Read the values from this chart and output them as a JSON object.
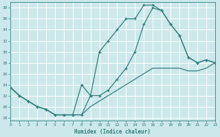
{
  "xlabel": "Humidex (Indice chaleur)",
  "xlim": [
    0,
    23
  ],
  "ylim": [
    17.5,
    39
  ],
  "yticks": [
    18,
    20,
    22,
    24,
    26,
    28,
    30,
    32,
    34,
    36,
    38
  ],
  "xticks": [
    0,
    1,
    2,
    3,
    4,
    5,
    6,
    7,
    8,
    9,
    10,
    11,
    12,
    13,
    14,
    15,
    16,
    17,
    18,
    19,
    20,
    21,
    22,
    23
  ],
  "bg_color": "#cce8ea",
  "grid_color": "#ffffff",
  "line_color": "#2e7d7d",
  "line1_x": [
    0,
    1,
    2,
    3,
    4,
    5,
    6,
    7,
    8,
    9,
    10,
    11,
    12,
    13,
    14,
    15,
    16,
    17,
    18,
    19,
    20,
    21,
    22,
    23
  ],
  "line1_y": [
    23.5,
    22,
    21,
    20,
    19.5,
    18.5,
    18.5,
    18.5,
    18.5,
    22,
    30,
    32,
    34,
    36,
    36,
    38.5,
    38.5,
    37.5,
    35,
    33,
    29,
    28,
    28.5,
    28
  ],
  "line2_x": [
    0,
    1,
    2,
    3,
    4,
    5,
    6,
    7,
    8,
    9,
    10,
    11,
    12,
    13,
    14,
    15,
    16,
    17,
    18,
    19,
    20,
    21,
    22,
    23
  ],
  "line2_y": [
    23.5,
    22,
    21,
    20,
    19.5,
    18.5,
    18.5,
    18.5,
    24,
    22,
    22,
    23,
    25,
    27,
    30,
    35,
    38,
    37.5,
    35,
    33,
    29,
    28,
    28.5,
    28
  ],
  "line3_x": [
    0,
    1,
    2,
    3,
    4,
    5,
    6,
    7,
    8,
    9,
    10,
    11,
    12,
    13,
    14,
    15,
    16,
    17,
    18,
    19,
    20,
    21,
    22,
    23
  ],
  "line3_y": [
    23.5,
    22,
    21,
    20,
    19.5,
    18.5,
    18.5,
    18.5,
    18.5,
    20,
    21,
    22,
    23,
    24,
    25,
    26,
    27,
    27,
    27,
    27,
    26.5,
    26.5,
    27,
    28
  ]
}
